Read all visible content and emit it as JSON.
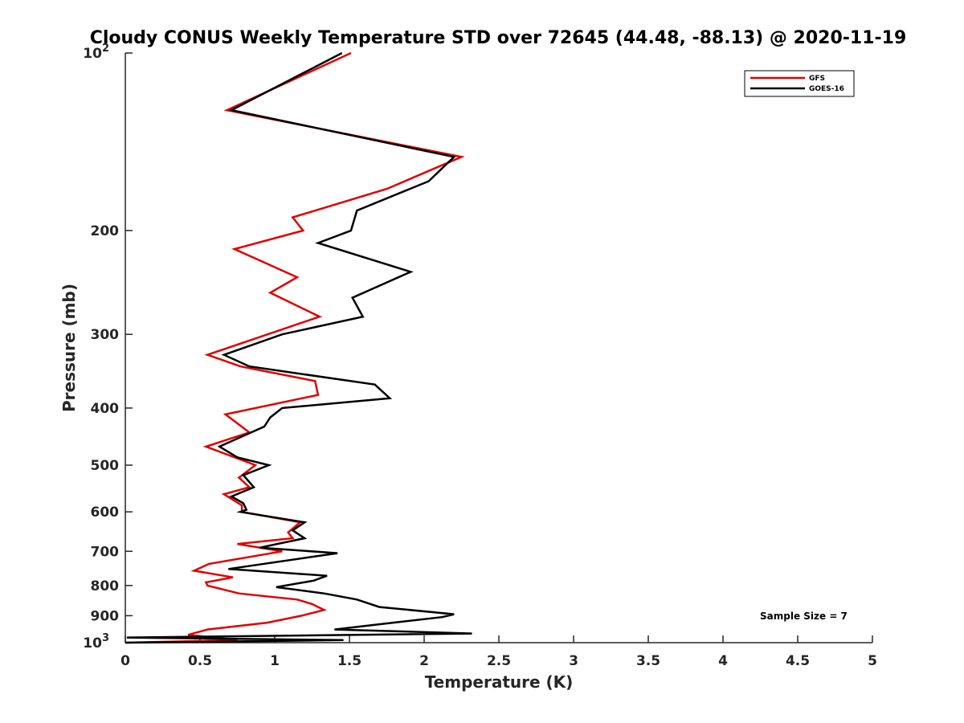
{
  "chart_data": {
    "type": "line",
    "title": "Cloudy CONUS Weekly Temperature STD over 72645 (44.48, -88.13) @ 2020-11-19",
    "xlabel": "Temperature (K)",
    "ylabel": "Pressure (mb)",
    "xlim": [
      0,
      5
    ],
    "ylim": [
      100,
      1000
    ],
    "yscale": "log",
    "yreversed": true,
    "grid": false,
    "legend_position": "top-right",
    "x_ticks": [
      "0",
      "0.5",
      "1",
      "1.5",
      "2",
      "2.5",
      "3",
      "3.5",
      "4",
      "4.5",
      "5"
    ],
    "x_tick_values": [
      0,
      0.5,
      1,
      1.5,
      2,
      2.5,
      3,
      3.5,
      4,
      4.5,
      5
    ],
    "y_ticks": [
      {
        "value": 100,
        "label": "10",
        "sup": "2"
      },
      {
        "value": 200,
        "label": "200",
        "sup": ""
      },
      {
        "value": 300,
        "label": "300",
        "sup": ""
      },
      {
        "value": 400,
        "label": "400",
        "sup": ""
      },
      {
        "value": 500,
        "label": "500",
        "sup": ""
      },
      {
        "value": 600,
        "label": "600",
        "sup": ""
      },
      {
        "value": 700,
        "label": "700",
        "sup": ""
      },
      {
        "value": 800,
        "label": "800",
        "sup": ""
      },
      {
        "value": 900,
        "label": "900",
        "sup": ""
      },
      {
        "value": 1000,
        "label": "10",
        "sup": "3"
      }
    ],
    "series": [
      {
        "name": "GFS",
        "color": "#e00000",
        "points": [
          [
            1.51,
            100
          ],
          [
            0.68,
            125
          ],
          [
            2.25,
            150
          ],
          [
            1.75,
            170
          ],
          [
            1.12,
            190
          ],
          [
            1.19,
            200
          ],
          [
            0.73,
            215
          ],
          [
            1.15,
            240
          ],
          [
            0.97,
            255
          ],
          [
            1.3,
            280
          ],
          [
            0.55,
            325
          ],
          [
            0.77,
            340
          ],
          [
            1.27,
            360
          ],
          [
            1.29,
            380
          ],
          [
            0.67,
            410
          ],
          [
            0.83,
            440
          ],
          [
            0.54,
            465
          ],
          [
            0.87,
            500
          ],
          [
            0.76,
            525
          ],
          [
            0.83,
            545
          ],
          [
            0.66,
            560
          ],
          [
            0.78,
            585
          ],
          [
            0.78,
            600
          ],
          [
            1.17,
            625
          ],
          [
            1.09,
            650
          ],
          [
            1.12,
            665
          ],
          [
            0.75,
            680
          ],
          [
            1.05,
            700
          ],
          [
            0.56,
            735
          ],
          [
            0.46,
            755
          ],
          [
            0.72,
            775
          ],
          [
            0.54,
            790
          ],
          [
            0.55,
            800
          ],
          [
            0.76,
            825
          ],
          [
            1.15,
            845
          ],
          [
            1.25,
            860
          ],
          [
            1.33,
            880
          ],
          [
            1.18,
            900
          ],
          [
            0.95,
            925
          ],
          [
            0.55,
            950
          ],
          [
            0.42,
            970
          ],
          [
            0.75,
            990
          ],
          [
            0.0,
            1000
          ]
        ]
      },
      {
        "name": "GOES-16",
        "color": "#000000",
        "points": [
          [
            1.45,
            100
          ],
          [
            0.71,
            125
          ],
          [
            2.2,
            150
          ],
          [
            2.03,
            165
          ],
          [
            1.55,
            185
          ],
          [
            1.51,
            200
          ],
          [
            1.29,
            210
          ],
          [
            1.91,
            235
          ],
          [
            1.52,
            260
          ],
          [
            1.59,
            280
          ],
          [
            1.05,
            300
          ],
          [
            0.66,
            325
          ],
          [
            0.83,
            340
          ],
          [
            1.67,
            365
          ],
          [
            1.77,
            385
          ],
          [
            1.05,
            400
          ],
          [
            0.97,
            415
          ],
          [
            0.93,
            430
          ],
          [
            0.63,
            465
          ],
          [
            0.75,
            485
          ],
          [
            0.96,
            500
          ],
          [
            0.79,
            520
          ],
          [
            0.86,
            545
          ],
          [
            0.71,
            565
          ],
          [
            0.79,
            580
          ],
          [
            0.81,
            595
          ],
          [
            0.77,
            600
          ],
          [
            1.2,
            625
          ],
          [
            1.12,
            645
          ],
          [
            1.2,
            665
          ],
          [
            0.9,
            690
          ],
          [
            1.42,
            705
          ],
          [
            0.69,
            750
          ],
          [
            1.35,
            770
          ],
          [
            1.26,
            785
          ],
          [
            1.01,
            805
          ],
          [
            1.33,
            825
          ],
          [
            1.55,
            845
          ],
          [
            1.7,
            870
          ],
          [
            2.2,
            895
          ],
          [
            2.12,
            905
          ],
          [
            1.63,
            935
          ],
          [
            1.4,
            950
          ],
          [
            2.32,
            965
          ],
          [
            0.01,
            980
          ],
          [
            1.46,
            990
          ],
          [
            0.0,
            1000
          ]
        ]
      }
    ],
    "annotation": "Sample Size = 7"
  }
}
